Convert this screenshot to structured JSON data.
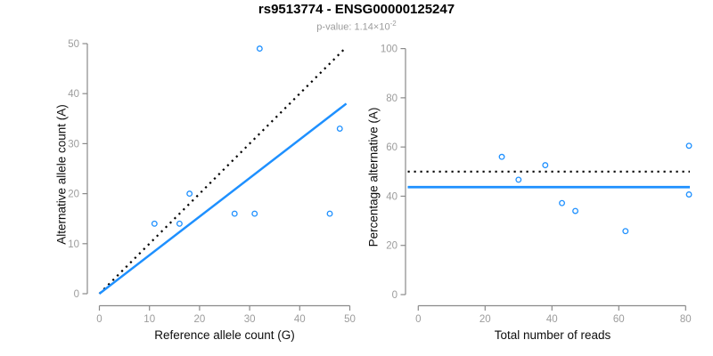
{
  "header": {
    "title": "rs9513774 - ENSG00000125247",
    "pvalue_text": "p-value: 1.14×10",
    "pvalue_exponent": "-2"
  },
  "colors": {
    "accent_blue": "#1e90ff",
    "dotted_black": "#000000",
    "axis_gray": "#8a8a8a",
    "tick_label_gray": "#9c9c9c",
    "title_black": "#000000",
    "subtitle_gray": "#9c9c9c"
  },
  "chart_data": [
    {
      "type": "scatter",
      "xlabel": "Reference allele count (G)",
      "ylabel": "Alternative allele count (A)",
      "xlim": [
        0,
        50
      ],
      "ylim": [
        0,
        50
      ],
      "xticks": [
        0,
        10,
        20,
        30,
        40,
        50
      ],
      "yticks": [
        0,
        10,
        20,
        30,
        40,
        50
      ],
      "grid": false,
      "legend": null,
      "points": [
        [
          11,
          14
        ],
        [
          16,
          14
        ],
        [
          18,
          20
        ],
        [
          27,
          16
        ],
        [
          31,
          16
        ],
        [
          32,
          49
        ],
        [
          46,
          16
        ],
        [
          48,
          33
        ]
      ],
      "lines": [
        {
          "name": "identity-line",
          "style": "dotted",
          "color": "#000000",
          "x1": 0,
          "y1": 0,
          "x2": 49,
          "y2": 49
        },
        {
          "name": "fit-line",
          "style": "solid",
          "color": "#1e90ff",
          "x1": 0,
          "y1": 0,
          "x2": 49.3,
          "y2": 38
        }
      ]
    },
    {
      "type": "scatter",
      "xlabel": "Total number of reads",
      "ylabel": "Percentage alternative (A)",
      "xlim": [
        0,
        84
      ],
      "ylim": [
        0,
        100
      ],
      "xticks": [
        0,
        20,
        40,
        60,
        80
      ],
      "yticks": [
        0,
        20,
        40,
        60,
        80,
        100
      ],
      "grid": false,
      "legend": null,
      "points": [
        [
          25,
          56
        ],
        [
          30,
          46.7
        ],
        [
          38,
          52.6
        ],
        [
          43,
          37.2
        ],
        [
          47,
          34
        ],
        [
          62,
          25.8
        ],
        [
          81,
          60.5
        ],
        [
          81,
          40.7
        ]
      ],
      "hlines": [
        {
          "name": "threshold-line",
          "style": "dotted",
          "color": "#000000",
          "y": 50
        },
        {
          "name": "mean-line",
          "style": "solid",
          "color": "#1e90ff",
          "y": 43.7
        }
      ]
    }
  ]
}
